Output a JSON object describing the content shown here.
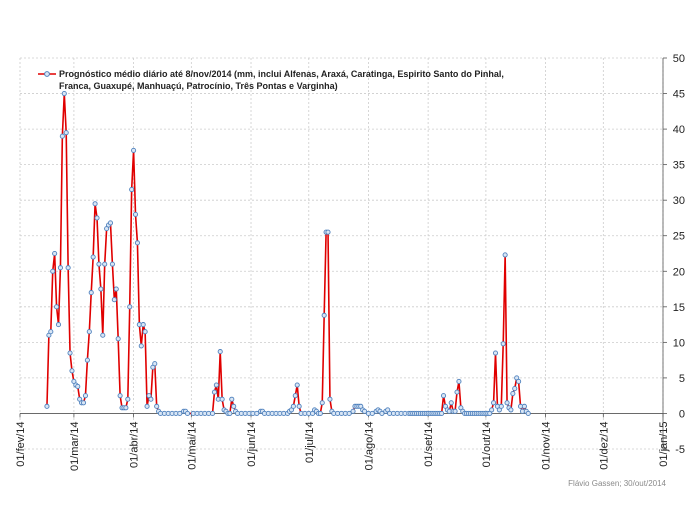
{
  "chart_data": {
    "type": "line",
    "title": "",
    "xlabel": "",
    "ylabel": "",
    "legend": {
      "position": "top-left",
      "lines": [
        "Prognóstico médio diário até 8/nov/2014 (mm, inclui Alfenas, Araxá, Caratinga, Espirito Santo do Pinhal,",
        "Franca, Guaxupé, Manhuaçú, Patrocínio, Três Pontas e Varginha)"
      ]
    },
    "credit": "Flávio Gassen; 30/out/2014",
    "y_axis": {
      "position": "right",
      "ylim": [
        -5,
        50
      ],
      "ticks": [
        "-5",
        "0",
        "5",
        "10",
        "15",
        "20",
        "25",
        "30",
        "35",
        "40",
        "45",
        "50"
      ]
    },
    "x_axis": {
      "tick_labels": [
        "01/fev/14",
        "01/mar/14",
        "01/abr/14",
        "01/mai/14",
        "01/jun/14",
        "01/jul/14",
        "01/ago/14",
        "01/set/14",
        "01/out/14",
        "01/nov/14",
        "01/dez/14",
        "01/jan/15"
      ]
    },
    "grid": true,
    "colors": {
      "line": "#e00000",
      "marker_edge": "#4f81bd",
      "marker_fill": "#d9e6f5",
      "grid": "#cccccc"
    },
    "series": [
      {
        "name": "Prognóstico médio diário até 8/nov/2014 (mm, inclui Alfenas, Araxá, Caratinga, Espirito Santo do Pinhal, Franca, Guaxupé, Manhuaçú, Patrocínio, Três Pontas e Varginha)",
        "points": [
          [
            "2014-02-15",
            1.0
          ],
          [
            "2014-02-16",
            11.0
          ],
          [
            "2014-02-17",
            11.5
          ],
          [
            "2014-02-18",
            20.0
          ],
          [
            "2014-02-19",
            22.5
          ],
          [
            "2014-02-20",
            15.0
          ],
          [
            "2014-02-21",
            12.5
          ],
          [
            "2014-02-22",
            20.5
          ],
          [
            "2014-02-23",
            39.0
          ],
          [
            "2014-02-24",
            45.0
          ],
          [
            "2014-02-25",
            39.5
          ],
          [
            "2014-02-26",
            20.5
          ],
          [
            "2014-02-27",
            8.5
          ],
          [
            "2014-02-28",
            6.0
          ],
          [
            "2014-03-01",
            4.5
          ],
          [
            "2014-03-02",
            4.0
          ],
          [
            "2014-03-03",
            3.8
          ],
          [
            "2014-03-04",
            2.0
          ],
          [
            "2014-03-05",
            1.5
          ],
          [
            "2014-03-06",
            1.5
          ],
          [
            "2014-03-07",
            2.5
          ],
          [
            "2014-03-08",
            7.5
          ],
          [
            "2014-03-09",
            11.5
          ],
          [
            "2014-03-10",
            17.0
          ],
          [
            "2014-03-11",
            22.0
          ],
          [
            "2014-03-12",
            29.5
          ],
          [
            "2014-03-13",
            27.5
          ],
          [
            "2014-03-14",
            21.0
          ],
          [
            "2014-03-15",
            17.5
          ],
          [
            "2014-03-16",
            11.0
          ],
          [
            "2014-03-17",
            21.0
          ],
          [
            "2014-03-18",
            26.0
          ],
          [
            "2014-03-19",
            26.5
          ],
          [
            "2014-03-20",
            26.8
          ],
          [
            "2014-03-21",
            21.0
          ],
          [
            "2014-03-22",
            16.0
          ],
          [
            "2014-03-23",
            17.5
          ],
          [
            "2014-03-24",
            10.5
          ],
          [
            "2014-03-25",
            2.5
          ],
          [
            "2014-03-26",
            0.8
          ],
          [
            "2014-03-27",
            0.8
          ],
          [
            "2014-03-28",
            0.8
          ],
          [
            "2014-03-29",
            2.0
          ],
          [
            "2014-03-30",
            15.0
          ],
          [
            "2014-03-31",
            31.5
          ],
          [
            "2014-04-01",
            37.0
          ],
          [
            "2014-04-02",
            28.0
          ],
          [
            "2014-04-03",
            24.0
          ],
          [
            "2014-04-04",
            12.5
          ],
          [
            "2014-04-05",
            9.5
          ],
          [
            "2014-04-06",
            12.5
          ],
          [
            "2014-04-07",
            11.5
          ],
          [
            "2014-04-08",
            1.0
          ],
          [
            "2014-04-09",
            2.5
          ],
          [
            "2014-04-10",
            2.0
          ],
          [
            "2014-04-11",
            6.5
          ],
          [
            "2014-04-12",
            7.0
          ],
          [
            "2014-04-13",
            1.0
          ],
          [
            "2014-04-14",
            0.3
          ],
          [
            "2014-04-15",
            0.0
          ],
          [
            "2014-04-17",
            0.0
          ],
          [
            "2014-04-19",
            0.0
          ],
          [
            "2014-04-21",
            0.0
          ],
          [
            "2014-04-23",
            0.0
          ],
          [
            "2014-04-25",
            0.0
          ],
          [
            "2014-04-27",
            0.3
          ],
          [
            "2014-04-28",
            0.3
          ],
          [
            "2014-04-29",
            0.0
          ],
          [
            "2014-05-02",
            0.0
          ],
          [
            "2014-05-04",
            0.0
          ],
          [
            "2014-05-06",
            0.0
          ],
          [
            "2014-05-08",
            0.0
          ],
          [
            "2014-05-10",
            0.0
          ],
          [
            "2014-05-12",
            0.0
          ],
          [
            "2014-05-13",
            3.0
          ],
          [
            "2014-05-14",
            4.0
          ],
          [
            "2014-05-15",
            2.0
          ],
          [
            "2014-05-16",
            8.7
          ],
          [
            "2014-05-17",
            2.0
          ],
          [
            "2014-05-18",
            0.5
          ],
          [
            "2014-05-19",
            0.3
          ],
          [
            "2014-05-20",
            0.0
          ],
          [
            "2014-05-21",
            0.0
          ],
          [
            "2014-05-22",
            2.0
          ],
          [
            "2014-05-23",
            1.0
          ],
          [
            "2014-05-24",
            0.3
          ],
          [
            "2014-05-25",
            0.0
          ],
          [
            "2014-05-27",
            0.0
          ],
          [
            "2014-05-29",
            0.0
          ],
          [
            "2014-05-31",
            0.0
          ],
          [
            "2014-06-02",
            0.0
          ],
          [
            "2014-06-04",
            0.0
          ],
          [
            "2014-06-06",
            0.3
          ],
          [
            "2014-06-07",
            0.3
          ],
          [
            "2014-06-08",
            0.0
          ],
          [
            "2014-06-10",
            0.0
          ],
          [
            "2014-06-12",
            0.0
          ],
          [
            "2014-06-14",
            0.0
          ],
          [
            "2014-06-16",
            0.0
          ],
          [
            "2014-06-18",
            0.0
          ],
          [
            "2014-06-20",
            0.0
          ],
          [
            "2014-06-21",
            0.3
          ],
          [
            "2014-06-22",
            0.5
          ],
          [
            "2014-06-23",
            1.0
          ],
          [
            "2014-06-24",
            2.5
          ],
          [
            "2014-06-25",
            4.0
          ],
          [
            "2014-06-26",
            1.0
          ],
          [
            "2014-06-27",
            0.0
          ],
          [
            "2014-06-29",
            0.0
          ],
          [
            "2014-07-01",
            0.0
          ],
          [
            "2014-07-03",
            0.0
          ],
          [
            "2014-07-04",
            0.5
          ],
          [
            "2014-07-05",
            0.3
          ],
          [
            "2014-07-06",
            0.0
          ],
          [
            "2014-07-07",
            0.0
          ],
          [
            "2014-07-08",
            1.5
          ],
          [
            "2014-07-09",
            13.8
          ],
          [
            "2014-07-10",
            25.5
          ],
          [
            "2014-07-11",
            25.5
          ],
          [
            "2014-07-12",
            2.0
          ],
          [
            "2014-07-13",
            0.3
          ],
          [
            "2014-07-14",
            0.0
          ],
          [
            "2014-07-16",
            0.0
          ],
          [
            "2014-07-18",
            0.0
          ],
          [
            "2014-07-20",
            0.0
          ],
          [
            "2014-07-22",
            0.0
          ],
          [
            "2014-07-24",
            0.3
          ],
          [
            "2014-07-25",
            1.0
          ],
          [
            "2014-07-26",
            1.0
          ],
          [
            "2014-07-27",
            1.0
          ],
          [
            "2014-07-28",
            1.0
          ],
          [
            "2014-07-29",
            0.5
          ],
          [
            "2014-07-30",
            0.3
          ],
          [
            "2014-08-01",
            0.0
          ],
          [
            "2014-08-03",
            0.0
          ],
          [
            "2014-08-05",
            0.3
          ],
          [
            "2014-08-06",
            0.5
          ],
          [
            "2014-08-07",
            0.3
          ],
          [
            "2014-08-08",
            0.0
          ],
          [
            "2014-08-10",
            0.3
          ],
          [
            "2014-08-11",
            0.5
          ],
          [
            "2014-08-12",
            0.0
          ],
          [
            "2014-08-14",
            0.0
          ],
          [
            "2014-08-16",
            0.0
          ],
          [
            "2014-08-18",
            0.0
          ],
          [
            "2014-08-20",
            0.0
          ],
          [
            "2014-08-22",
            0.0
          ],
          [
            "2014-08-23",
            0.0
          ],
          [
            "2014-08-24",
            0.0
          ],
          [
            "2014-08-25",
            0.0
          ],
          [
            "2014-08-26",
            0.0
          ],
          [
            "2014-08-27",
            0.0
          ],
          [
            "2014-08-28",
            0.0
          ],
          [
            "2014-08-29",
            0.0
          ],
          [
            "2014-08-30",
            0.0
          ],
          [
            "2014-08-31",
            0.0
          ],
          [
            "2014-09-01",
            0.0
          ],
          [
            "2014-09-02",
            0.0
          ],
          [
            "2014-09-03",
            0.0
          ],
          [
            "2014-09-04",
            0.0
          ],
          [
            "2014-09-05",
            0.0
          ],
          [
            "2014-09-06",
            0.0
          ],
          [
            "2014-09-07",
            0.0
          ],
          [
            "2014-09-08",
            0.0
          ],
          [
            "2014-09-09",
            2.5
          ],
          [
            "2014-09-10",
            1.0
          ],
          [
            "2014-09-11",
            0.5
          ],
          [
            "2014-09-12",
            0.3
          ],
          [
            "2014-09-13",
            1.5
          ],
          [
            "2014-09-14",
            0.3
          ],
          [
            "2014-09-15",
            0.3
          ],
          [
            "2014-09-16",
            3.0
          ],
          [
            "2014-09-17",
            4.5
          ],
          [
            "2014-09-18",
            0.8
          ],
          [
            "2014-09-19",
            0.3
          ],
          [
            "2014-09-20",
            0.0
          ],
          [
            "2014-09-21",
            0.0
          ],
          [
            "2014-09-22",
            0.0
          ],
          [
            "2014-09-23",
            0.0
          ],
          [
            "2014-09-24",
            0.0
          ],
          [
            "2014-09-25",
            0.0
          ],
          [
            "2014-09-26",
            0.0
          ],
          [
            "2014-09-27",
            0.0
          ],
          [
            "2014-09-28",
            0.0
          ],
          [
            "2014-09-29",
            0.0
          ],
          [
            "2014-09-30",
            0.0
          ],
          [
            "2014-10-01",
            0.0
          ],
          [
            "2014-10-02",
            0.0
          ],
          [
            "2014-10-03",
            0.0
          ],
          [
            "2014-10-04",
            0.5
          ],
          [
            "2014-10-05",
            1.5
          ],
          [
            "2014-10-06",
            8.5
          ],
          [
            "2014-10-07",
            1.0
          ],
          [
            "2014-10-08",
            0.5
          ],
          [
            "2014-10-09",
            1.0
          ],
          [
            "2014-10-10",
            9.8
          ],
          [
            "2014-10-11",
            22.3
          ],
          [
            "2014-10-12",
            1.5
          ],
          [
            "2014-10-13",
            0.8
          ],
          [
            "2014-10-14",
            0.5
          ],
          [
            "2014-10-15",
            2.8
          ],
          [
            "2014-10-16",
            3.5
          ],
          [
            "2014-10-17",
            5.0
          ],
          [
            "2014-10-18",
            4.5
          ],
          [
            "2014-10-19",
            1.0
          ],
          [
            "2014-10-20",
            0.3
          ],
          [
            "2014-10-21",
            1.0
          ],
          [
            "2014-10-22",
            0.3
          ],
          [
            "2014-10-23",
            0.0
          ]
        ]
      }
    ]
  }
}
